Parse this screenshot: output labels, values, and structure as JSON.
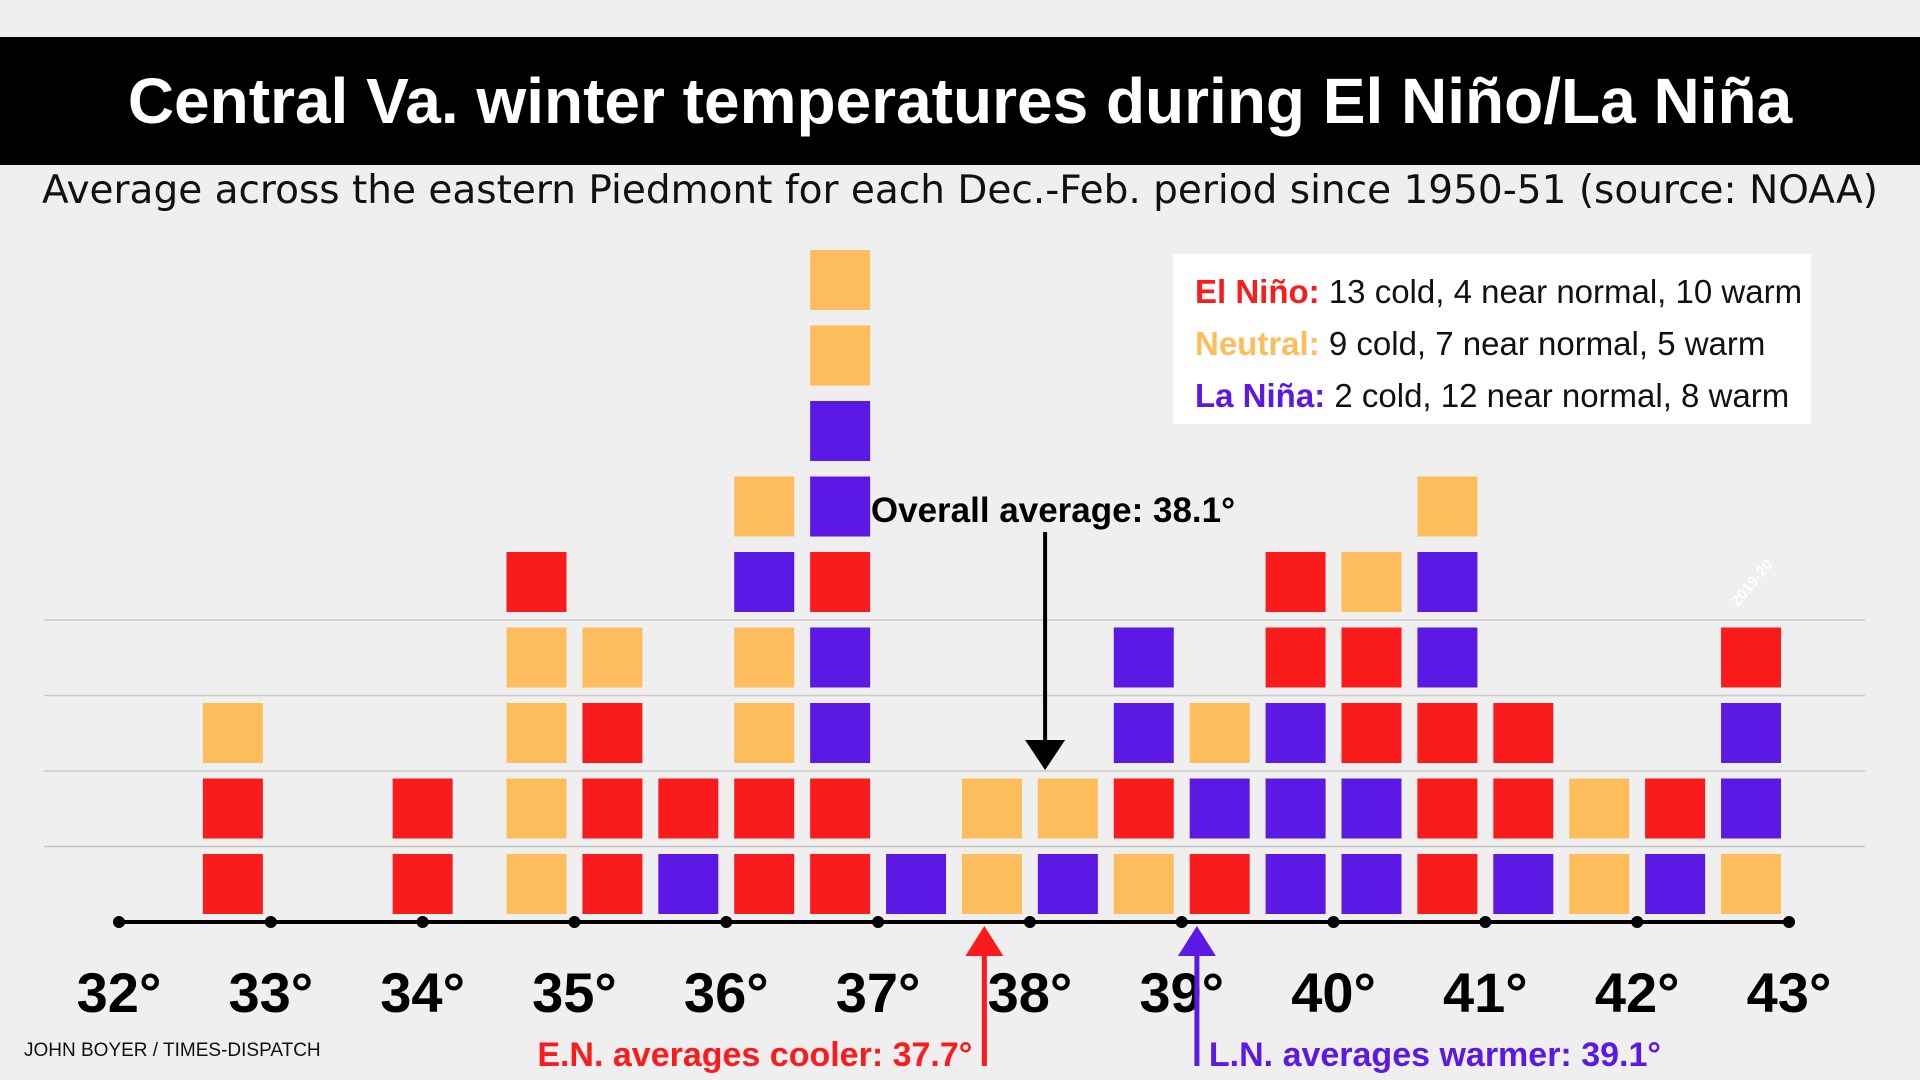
{
  "title": "Central Va. winter temperatures during El Niño/La Niña",
  "subtitle": "Average across the eastern Piedmont for each Dec.-Feb. period since 1950-51 (source: NOAA)",
  "credit": "JOHN BOYER / TIMES-DISPATCH",
  "colors": {
    "el_nino": "#fa1c1c",
    "neutral": "#fdbd5c",
    "la_nina": "#5c19e6",
    "axis": "#000000",
    "grid": "#c8c8c8"
  },
  "legend": [
    {
      "name": "El Niño:",
      "summary": "13 cold, 4 near normal, 10 warm",
      "color": "#fa1c1c"
    },
    {
      "name": "Neutral:",
      "summary": "9 cold, 7 near normal, 5 warm",
      "color": "#fdbd5c"
    },
    {
      "name": "La Niña:",
      "summary": "2 cold, 12 near normal, 8 warm",
      "color": "#5c19e6"
    }
  ],
  "chart_data": {
    "type": "dot-histogram",
    "title": "Central Va. winter temperatures during El Niño/La Niña",
    "xlabel": "",
    "ylabel": "",
    "x_ticks": [
      32,
      33,
      34,
      35,
      36,
      37,
      38,
      39,
      40,
      41,
      42,
      43
    ],
    "x_tick_labels": [
      "32°",
      "33°",
      "34°",
      "35°",
      "36°",
      "37°",
      "38°",
      "39°",
      "40°",
      "41°",
      "42°",
      "43°"
    ],
    "xlim": [
      32,
      43
    ],
    "bin_width": 0.5,
    "grid": "horizontal",
    "legend_position": "top-right",
    "categories_key": [
      "el_nino",
      "neutral",
      "la_nina"
    ],
    "bins": [
      {
        "x": 32.75,
        "stack": [
          "el_nino",
          "el_nino",
          "neutral"
        ]
      },
      {
        "x": 34.0,
        "stack": [
          "el_nino",
          "el_nino"
        ]
      },
      {
        "x": 34.75,
        "stack": [
          "neutral",
          "neutral",
          "neutral",
          "neutral",
          "el_nino"
        ]
      },
      {
        "x": 35.25,
        "stack": [
          "el_nino",
          "el_nino",
          "el_nino",
          "neutral"
        ]
      },
      {
        "x": 35.75,
        "stack": [
          "la_nina",
          "el_nino"
        ]
      },
      {
        "x": 36.25,
        "stack": [
          "el_nino",
          "el_nino",
          "neutral",
          "neutral",
          "la_nina",
          "neutral"
        ]
      },
      {
        "x": 36.75,
        "stack": [
          "el_nino",
          "el_nino",
          "la_nina",
          "la_nina",
          "el_nino",
          "la_nina",
          "la_nina",
          "neutral",
          "neutral"
        ]
      },
      {
        "x": 37.25,
        "stack": [
          "la_nina"
        ]
      },
      {
        "x": 37.75,
        "stack": [
          "neutral",
          "neutral"
        ]
      },
      {
        "x": 38.25,
        "stack": [
          "la_nina",
          "neutral"
        ]
      },
      {
        "x": 38.75,
        "stack": [
          "neutral",
          "el_nino",
          "la_nina",
          "la_nina"
        ]
      },
      {
        "x": 39.25,
        "stack": [
          "el_nino",
          "la_nina",
          "neutral"
        ]
      },
      {
        "x": 39.75,
        "stack": [
          "la_nina",
          "la_nina",
          "la_nina",
          "el_nino",
          "el_nino"
        ]
      },
      {
        "x": 40.25,
        "stack": [
          "la_nina",
          "la_nina",
          "el_nino",
          "el_nino",
          "neutral"
        ]
      },
      {
        "x": 40.75,
        "stack": [
          "el_nino",
          "el_nino",
          "el_nino",
          "la_nina",
          "la_nina",
          "neutral"
        ]
      },
      {
        "x": 41.25,
        "stack": [
          "la_nina",
          "el_nino",
          "el_nino"
        ]
      },
      {
        "x": 41.75,
        "stack": [
          "neutral",
          "neutral"
        ]
      },
      {
        "x": 42.25,
        "stack": [
          "la_nina",
          "el_nino"
        ]
      },
      {
        "x": 42.75,
        "stack": [
          "neutral",
          "la_nina",
          "la_nina",
          "el_nino"
        ]
      }
    ],
    "box_label": {
      "text": "2019-20",
      "bin_x": 42.75,
      "level": 4
    },
    "annotations": [
      {
        "text": "Overall average: 38.1°",
        "value": 38.1,
        "direction": "down",
        "color": "#000000"
      },
      {
        "text": "E.N. averages cooler: 37.7°",
        "value": 37.7,
        "direction": "up",
        "color": "#fa1c1c"
      },
      {
        "text": "L.N. averages warmer: 39.1°",
        "value": 39.1,
        "direction": "up",
        "color": "#5c19e6"
      }
    ]
  }
}
